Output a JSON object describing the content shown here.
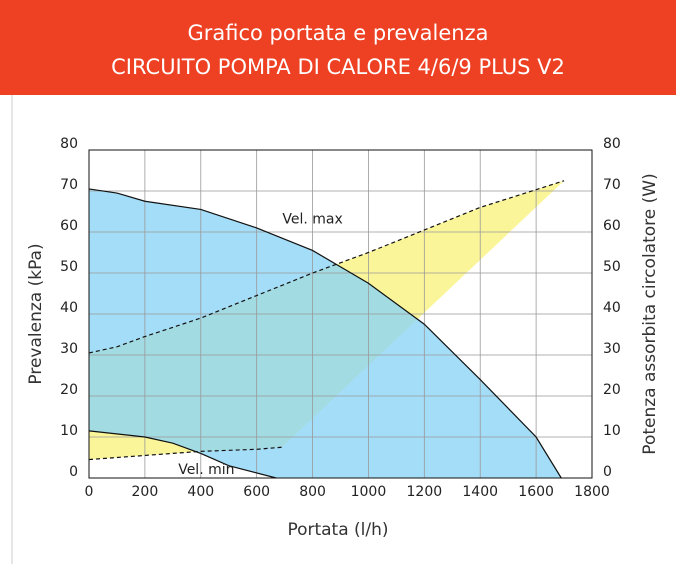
{
  "chart_data": {
    "type": "area",
    "title": "Grafico portata e prevalenza",
    "subtitle": "CIRCUITO POMPA DI CALORE 4/6/9 PLUS V2",
    "xlabel": "Portata (l/h)",
    "ylabel": "Prevalenza (kPa)",
    "y2label": "Potenza assorbita circolatore (W)",
    "xlim": [
      0,
      1800
    ],
    "xticks": [
      0,
      200,
      400,
      600,
      800,
      1000,
      1200,
      1400,
      1600,
      1800
    ],
    "ylim": [
      0,
      80
    ],
    "yticks": [
      0,
      10,
      20,
      30,
      40,
      50,
      60,
      70,
      80
    ],
    "y2lim": [
      0,
      80
    ],
    "y2ticks": [
      0,
      10,
      20,
      30,
      40,
      50,
      60,
      70,
      80
    ],
    "grid": true,
    "series": [
      {
        "name": "Vel. max",
        "color": "#8dd5f5",
        "x": [
          0,
          100,
          200,
          400,
          600,
          800,
          1000,
          1200,
          1400,
          1600,
          1690
        ],
        "values": [
          70.5,
          69.5,
          67.5,
          65.5,
          61,
          55.5,
          47.5,
          37.5,
          24,
          10,
          0
        ]
      },
      {
        "name": "Vel. min",
        "color": "#8dd5f5",
        "x": [
          0,
          200,
          300,
          400,
          500,
          670
        ],
        "values": [
          11.5,
          10,
          8.5,
          6,
          3,
          0
        ]
      },
      {
        "axis": "y2",
        "color": "#fbf59a",
        "x": [
          0,
          100,
          200,
          400,
          600,
          800,
          1000,
          1200,
          1400,
          1700
        ],
        "values": [
          30.5,
          32,
          34.5,
          39,
          44.5,
          50,
          55,
          60.5,
          66,
          72.5
        ]
      },
      {
        "axis": "y2",
        "color": "#fbf59a",
        "x": [
          0,
          200,
          400,
          600,
          690
        ],
        "values": [
          4.5,
          5.5,
          6.5,
          7,
          7.5
        ]
      }
    ]
  }
}
